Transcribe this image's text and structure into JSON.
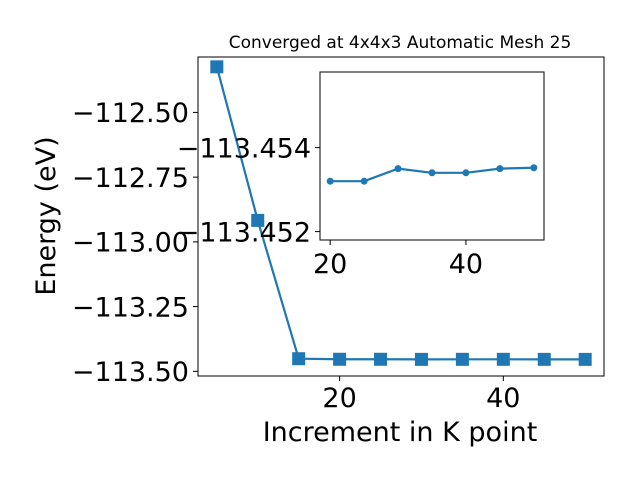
{
  "chart_data": [
    {
      "type": "line",
      "title": "Converged at 4x4x3 Automatic Mesh 25",
      "xlabel": "Increment in K point",
      "ylabel": "Energy (eV)",
      "xlim": [
        2.7,
        52.3
      ],
      "ylim": [
        -113.518,
        -112.286
      ],
      "x_ticks": [
        20,
        40
      ],
      "x_tick_labels": [
        "20",
        "40"
      ],
      "y_ticks": [
        -112.5,
        -112.75,
        -113.0,
        -113.25,
        -113.5
      ],
      "y_tick_labels": [
        "−112.50",
        "−112.75",
        "−113.00",
        "−113.25",
        "−113.50"
      ],
      "marker": "square",
      "color": "#1f77b4",
      "grid": false,
      "series": [
        {
          "x": [
            5,
            10,
            15,
            20,
            25,
            30,
            35,
            40,
            45,
            50
          ],
          "values": [
            -112.324,
            -112.917,
            -113.4512,
            -113.4534,
            -113.4534,
            -113.4538,
            -113.4536,
            -113.4536,
            -113.4537,
            -113.4538
          ]
        }
      ]
    },
    {
      "type": "line",
      "title": "",
      "xlabel": "",
      "ylabel": "",
      "inset": true,
      "xlim": [
        18.5,
        51.5
      ],
      "ylim": [
        -113.4518,
        -113.4558
      ],
      "x_ticks": [
        20,
        40
      ],
      "x_tick_labels": [
        "20",
        "40"
      ],
      "y_ticks": [
        -113.454,
        -113.452
      ],
      "y_tick_labels": [
        "−113.454",
        "−113.452"
      ],
      "marker": "circle",
      "color": "#1f77b4",
      "grid": false,
      "series": [
        {
          "x": [
            20,
            25,
            30,
            35,
            40,
            45,
            50
          ],
          "values": [
            -113.4532,
            -113.4532,
            -113.4535,
            -113.4534,
            -113.4534,
            -113.4535,
            -113.45352
          ]
        }
      ]
    }
  ]
}
